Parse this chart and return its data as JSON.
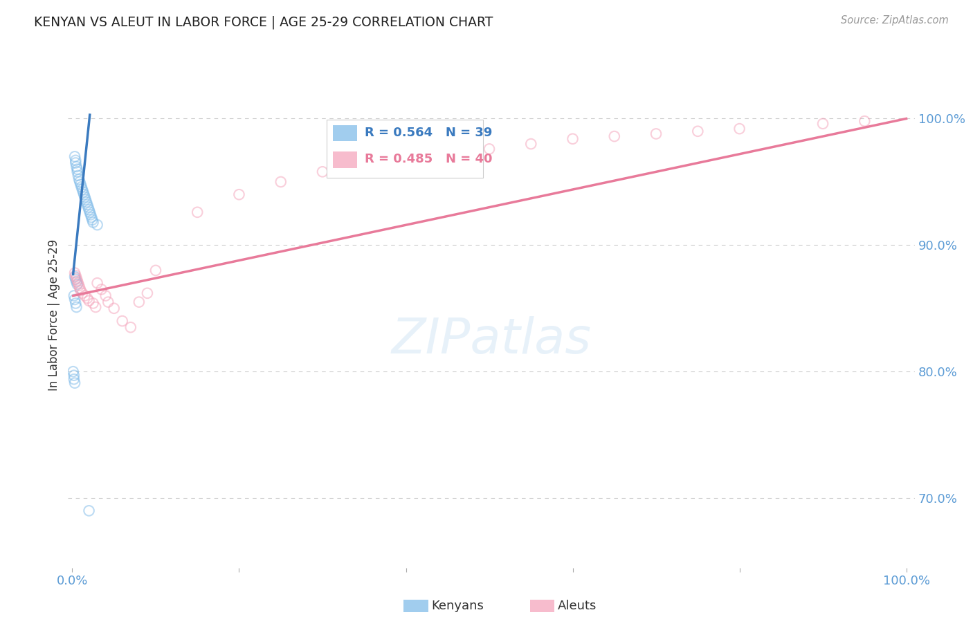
{
  "title": "KENYAN VS ALEUT IN LABOR FORCE | AGE 25-29 CORRELATION CHART",
  "source": "Source: ZipAtlas.com",
  "ylabel": "In Labor Force | Age 25-29",
  "bg_color": "#ffffff",
  "kenyan_color": "#7ab8e8",
  "aleut_color": "#f4a0b8",
  "kenyan_line_color": "#3a7abf",
  "aleut_line_color": "#e87a9a",
  "grid_color": "#cccccc",
  "title_color": "#222222",
  "tick_color": "#5b9bd5",
  "source_color": "#999999",
  "scatter_size": 110,
  "scatter_alpha": 0.5,
  "legend_R_kenyan": "R = 0.564",
  "legend_N_kenyan": "N = 39",
  "legend_R_aleut": "R = 0.485",
  "legend_N_aleut": "N = 40",
  "kenyan_x": [
    0.003,
    0.004,
    0.004,
    0.005,
    0.006,
    0.006,
    0.007,
    0.008,
    0.009,
    0.01,
    0.011,
    0.012,
    0.013,
    0.014,
    0.015,
    0.016,
    0.017,
    0.018,
    0.019,
    0.02,
    0.021,
    0.022,
    0.023,
    0.024,
    0.025,
    0.03,
    0.003,
    0.004,
    0.005,
    0.006,
    0.002,
    0.003,
    0.004,
    0.005,
    0.001,
    0.002,
    0.002,
    0.003,
    0.02
  ],
  "kenyan_y": [
    0.97,
    0.967,
    0.965,
    0.962,
    0.96,
    0.958,
    0.955,
    0.952,
    0.95,
    0.948,
    0.946,
    0.944,
    0.942,
    0.94,
    0.938,
    0.936,
    0.934,
    0.932,
    0.93,
    0.928,
    0.926,
    0.924,
    0.922,
    0.92,
    0.918,
    0.916,
    0.875,
    0.873,
    0.871,
    0.869,
    0.86,
    0.857,
    0.854,
    0.851,
    0.8,
    0.797,
    0.794,
    0.791,
    0.69
  ],
  "aleut_x": [
    0.003,
    0.004,
    0.005,
    0.006,
    0.007,
    0.008,
    0.009,
    0.01,
    0.012,
    0.015,
    0.018,
    0.02,
    0.025,
    0.028,
    0.03,
    0.035,
    0.04,
    0.043,
    0.05,
    0.06,
    0.07,
    0.08,
    0.09,
    0.1,
    0.15,
    0.2,
    0.25,
    0.3,
    0.35,
    0.4,
    0.45,
    0.5,
    0.55,
    0.6,
    0.65,
    0.7,
    0.75,
    0.8,
    0.9,
    0.95
  ],
  "aleut_y": [
    0.878,
    0.876,
    0.874,
    0.872,
    0.87,
    0.868,
    0.866,
    0.864,
    0.862,
    0.86,
    0.858,
    0.856,
    0.854,
    0.851,
    0.87,
    0.865,
    0.86,
    0.855,
    0.85,
    0.84,
    0.835,
    0.855,
    0.862,
    0.88,
    0.926,
    0.94,
    0.95,
    0.958,
    0.964,
    0.968,
    0.972,
    0.976,
    0.98,
    0.984,
    0.986,
    0.988,
    0.99,
    0.992,
    0.996,
    0.998
  ],
  "kenyan_line_x": [
    0.001,
    0.021
  ],
  "kenyan_line_y": [
    0.877,
    1.003
  ],
  "aleut_line_x": [
    0.001,
    1.0
  ],
  "aleut_line_y": [
    0.86,
    1.0
  ],
  "y_tick_vals": [
    0.7,
    0.8,
    0.9,
    1.0
  ],
  "y_tick_labels": [
    "70.0%",
    "80.0%",
    "90.0%",
    "100.0%"
  ],
  "x_lim": [
    -0.005,
    1.01
  ],
  "y_lim": [
    0.645,
    1.045
  ]
}
